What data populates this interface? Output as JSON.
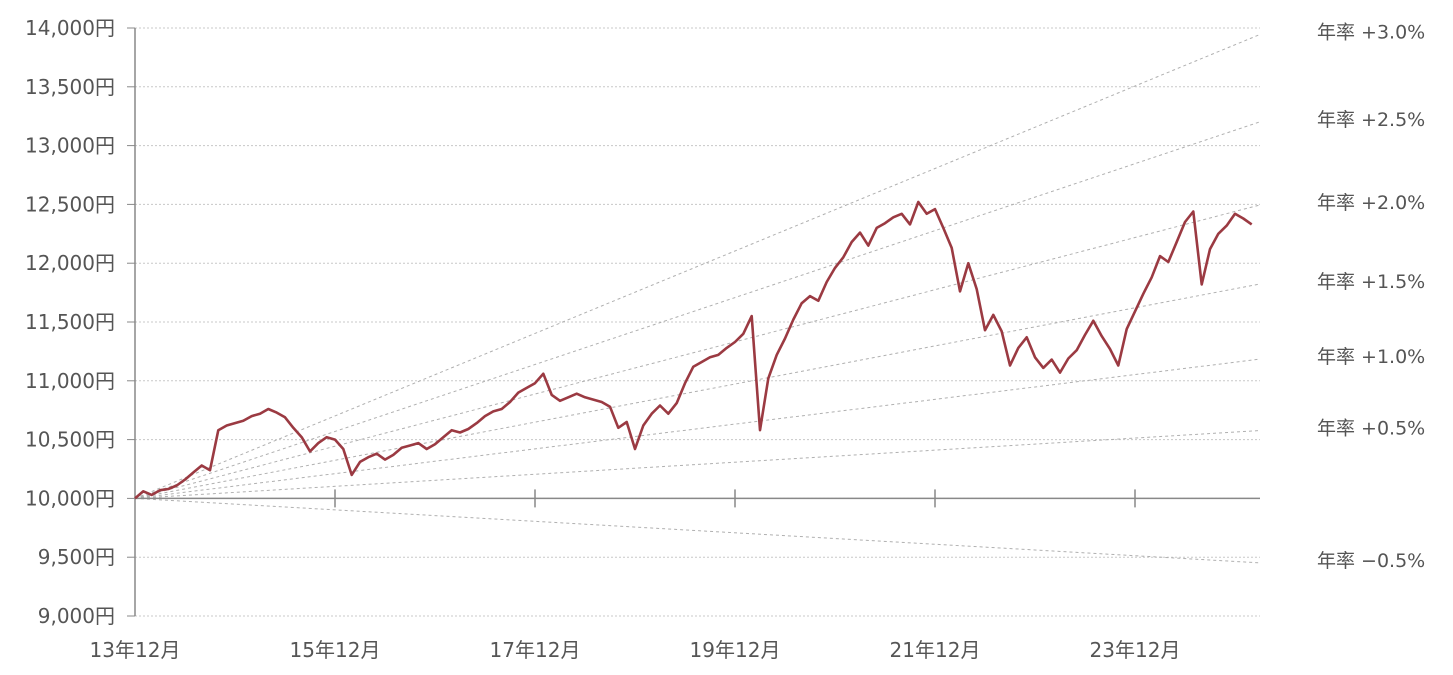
{
  "chart_data": {
    "type": "line",
    "title": "",
    "xlabel": "",
    "ylabel": "",
    "ylim": [
      9000,
      14000
    ],
    "y_ticks": [
      9000,
      9500,
      10000,
      10500,
      11000,
      11500,
      12000,
      12500,
      13000,
      13500,
      14000
    ],
    "y_tick_labels": [
      "9,000円",
      "9,500円",
      "10,000円",
      "10,500円",
      "11,000円",
      "11,500円",
      "12,000円",
      "12,500円",
      "13,000円",
      "13,500円",
      "14,000円"
    ],
    "x_range": [
      "2013-12",
      "2025-03"
    ],
    "x_ticks": [
      "2013-12",
      "2015-12",
      "2017-12",
      "2019-12",
      "2021-12",
      "2023-12"
    ],
    "x_tick_labels": [
      "13年12月",
      "15年12月",
      "17年12月",
      "19年12月",
      "21年12月",
      "23年12月"
    ],
    "grid": true,
    "series": [
      {
        "color": "#9b3a42",
        "points": [
          [
            "2013-12",
            10000
          ],
          [
            "2014-01",
            10060
          ],
          [
            "2014-02",
            10030
          ],
          [
            "2014-03",
            10070
          ],
          [
            "2014-04",
            10080
          ],
          [
            "2014-05",
            10110
          ],
          [
            "2014-06",
            10160
          ],
          [
            "2014-07",
            10220
          ],
          [
            "2014-08",
            10280
          ],
          [
            "2014-09",
            10240
          ],
          [
            "2014-10",
            10580
          ],
          [
            "2014-11",
            10620
          ],
          [
            "2014-12",
            10640
          ],
          [
            "2015-01",
            10660
          ],
          [
            "2015-02",
            10700
          ],
          [
            "2015-03",
            10720
          ],
          [
            "2015-04",
            10760
          ],
          [
            "2015-05",
            10730
          ],
          [
            "2015-06",
            10690
          ],
          [
            "2015-07",
            10600
          ],
          [
            "2015-08",
            10520
          ],
          [
            "2015-09",
            10400
          ],
          [
            "2015-10",
            10470
          ],
          [
            "2015-11",
            10520
          ],
          [
            "2015-12",
            10500
          ],
          [
            "2016-01",
            10420
          ],
          [
            "2016-02",
            10200
          ],
          [
            "2016-03",
            10310
          ],
          [
            "2016-04",
            10350
          ],
          [
            "2016-05",
            10380
          ],
          [
            "2016-06",
            10330
          ],
          [
            "2016-07",
            10370
          ],
          [
            "2016-08",
            10430
          ],
          [
            "2016-09",
            10450
          ],
          [
            "2016-10",
            10470
          ],
          [
            "2016-11",
            10420
          ],
          [
            "2016-12",
            10460
          ],
          [
            "2017-01",
            10520
          ],
          [
            "2017-02",
            10580
          ],
          [
            "2017-03",
            10560
          ],
          [
            "2017-04",
            10590
          ],
          [
            "2017-05",
            10640
          ],
          [
            "2017-06",
            10700
          ],
          [
            "2017-07",
            10740
          ],
          [
            "2017-08",
            10760
          ],
          [
            "2017-09",
            10820
          ],
          [
            "2017-10",
            10900
          ],
          [
            "2017-11",
            10940
          ],
          [
            "2017-12",
            10980
          ],
          [
            "2018-01",
            11060
          ],
          [
            "2018-02",
            10880
          ],
          [
            "2018-03",
            10830
          ],
          [
            "2018-04",
            10860
          ],
          [
            "2018-05",
            10890
          ],
          [
            "2018-06",
            10860
          ],
          [
            "2018-07",
            10840
          ],
          [
            "2018-08",
            10820
          ],
          [
            "2018-09",
            10780
          ],
          [
            "2018-10",
            10600
          ],
          [
            "2018-11",
            10650
          ],
          [
            "2018-12",
            10420
          ],
          [
            "2019-01",
            10620
          ],
          [
            "2019-02",
            10720
          ],
          [
            "2019-03",
            10790
          ],
          [
            "2019-04",
            10720
          ],
          [
            "2019-05",
            10810
          ],
          [
            "2019-06",
            10980
          ],
          [
            "2019-07",
            11120
          ],
          [
            "2019-08",
            11160
          ],
          [
            "2019-09",
            11200
          ],
          [
            "2019-10",
            11220
          ],
          [
            "2019-11",
            11280
          ],
          [
            "2019-12",
            11330
          ],
          [
            "2020-01",
            11400
          ],
          [
            "2020-02",
            11550
          ],
          [
            "2020-03",
            10580
          ],
          [
            "2020-04",
            11020
          ],
          [
            "2020-05",
            11220
          ],
          [
            "2020-06",
            11360
          ],
          [
            "2020-07",
            11520
          ],
          [
            "2020-08",
            11660
          ],
          [
            "2020-09",
            11720
          ],
          [
            "2020-10",
            11680
          ],
          [
            "2020-11",
            11840
          ],
          [
            "2020-12",
            11960
          ],
          [
            "2021-01",
            12050
          ],
          [
            "2021-02",
            12180
          ],
          [
            "2021-03",
            12260
          ],
          [
            "2021-04",
            12150
          ],
          [
            "2021-05",
            12300
          ],
          [
            "2021-06",
            12340
          ],
          [
            "2021-07",
            12390
          ],
          [
            "2021-08",
            12420
          ],
          [
            "2021-09",
            12330
          ],
          [
            "2021-10",
            12520
          ],
          [
            "2021-11",
            12420
          ],
          [
            "2021-12",
            12460
          ],
          [
            "2022-01",
            12300
          ],
          [
            "2022-02",
            12130
          ],
          [
            "2022-03",
            11760
          ],
          [
            "2022-04",
            12000
          ],
          [
            "2022-05",
            11780
          ],
          [
            "2022-06",
            11430
          ],
          [
            "2022-07",
            11560
          ],
          [
            "2022-08",
            11420
          ],
          [
            "2022-09",
            11130
          ],
          [
            "2022-10",
            11280
          ],
          [
            "2022-11",
            11370
          ],
          [
            "2022-12",
            11200
          ],
          [
            "2023-01",
            11110
          ],
          [
            "2023-02",
            11180
          ],
          [
            "2023-03",
            11070
          ],
          [
            "2023-04",
            11190
          ],
          [
            "2023-05",
            11260
          ],
          [
            "2023-06",
            11390
          ],
          [
            "2023-07",
            11510
          ],
          [
            "2023-08",
            11380
          ],
          [
            "2023-09",
            11270
          ],
          [
            "2023-10",
            11130
          ],
          [
            "2023-11",
            11440
          ],
          [
            "2023-12",
            11590
          ],
          [
            "2024-01",
            11740
          ],
          [
            "2024-02",
            11880
          ],
          [
            "2024-03",
            12060
          ],
          [
            "2024-04",
            12010
          ],
          [
            "2024-05",
            12180
          ],
          [
            "2024-06",
            12350
          ],
          [
            "2024-07",
            12440
          ],
          [
            "2024-08",
            11820
          ],
          [
            "2024-09",
            12120
          ],
          [
            "2024-10",
            12250
          ],
          [
            "2024-11",
            12320
          ],
          [
            "2024-12",
            12420
          ],
          [
            "2025-01",
            12380
          ],
          [
            "2025-02",
            12330
          ]
        ]
      }
    ],
    "reference_lines": [
      {
        "label": "年率 +3.0%",
        "rate": 3.0
      },
      {
        "label": "年率 +2.5%",
        "rate": 2.5
      },
      {
        "label": "年率 +2.0%",
        "rate": 2.0
      },
      {
        "label": "年率 +1.5%",
        "rate": 1.5
      },
      {
        "label": "年率 +1.0%",
        "rate": 1.0
      },
      {
        "label": "年率 +0.5%",
        "rate": 0.5
      },
      {
        "label": "年率 −0.5%",
        "rate": -0.5
      }
    ]
  }
}
